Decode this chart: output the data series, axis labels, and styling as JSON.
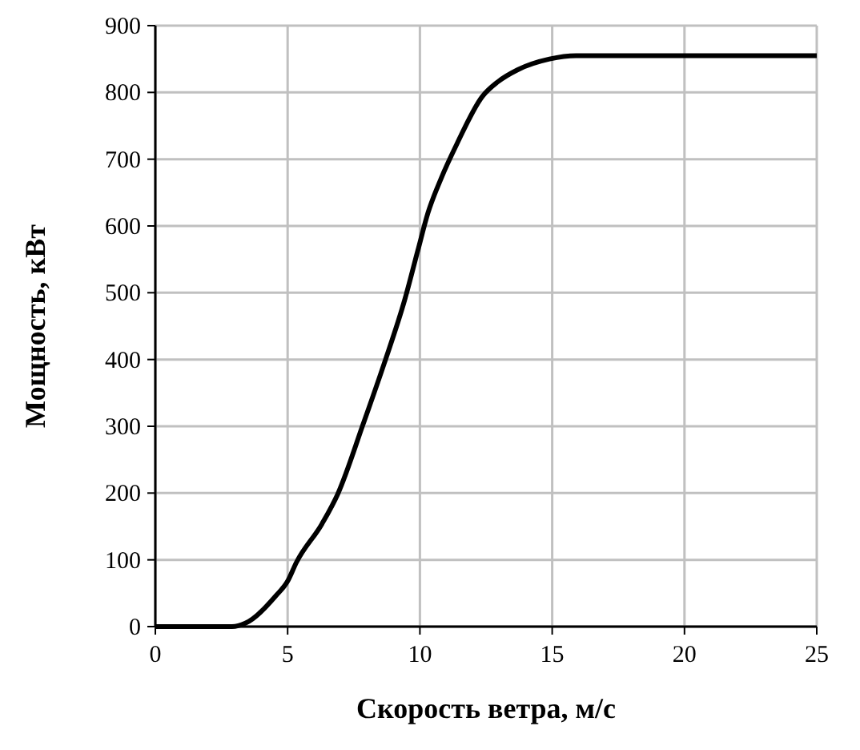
{
  "chart_data": {
    "type": "line",
    "xlabel": "Скорость ветра, м/с",
    "ylabel": "Мощность, кВт",
    "series": [
      {
        "color": "#000000",
        "x": [
          0,
          2.9,
          3.4,
          4.55,
          5,
          5.33,
          6.3,
          6.9,
          7.87,
          8.65,
          9.43,
          9.92,
          10.3,
          10.8,
          11.4,
          12.36,
          12.95,
          13.7,
          14.9,
          15.9,
          25
        ],
        "values": [
          0,
          0,
          5,
          46,
          68,
          96,
          154,
          199,
          305,
          394,
          490,
          563,
          619,
          671,
          723,
          794,
          816,
          834,
          850,
          855,
          855
        ]
      }
    ],
    "xlim": [
      0,
      25
    ],
    "xticks": [
      0,
      5,
      10,
      15,
      20,
      25
    ],
    "ylim": [
      0,
      900
    ],
    "yticks": [
      0,
      100,
      200,
      300,
      400,
      500,
      600,
      700,
      800,
      900
    ],
    "grid": true,
    "marker": "none",
    "line_style": "solid"
  }
}
